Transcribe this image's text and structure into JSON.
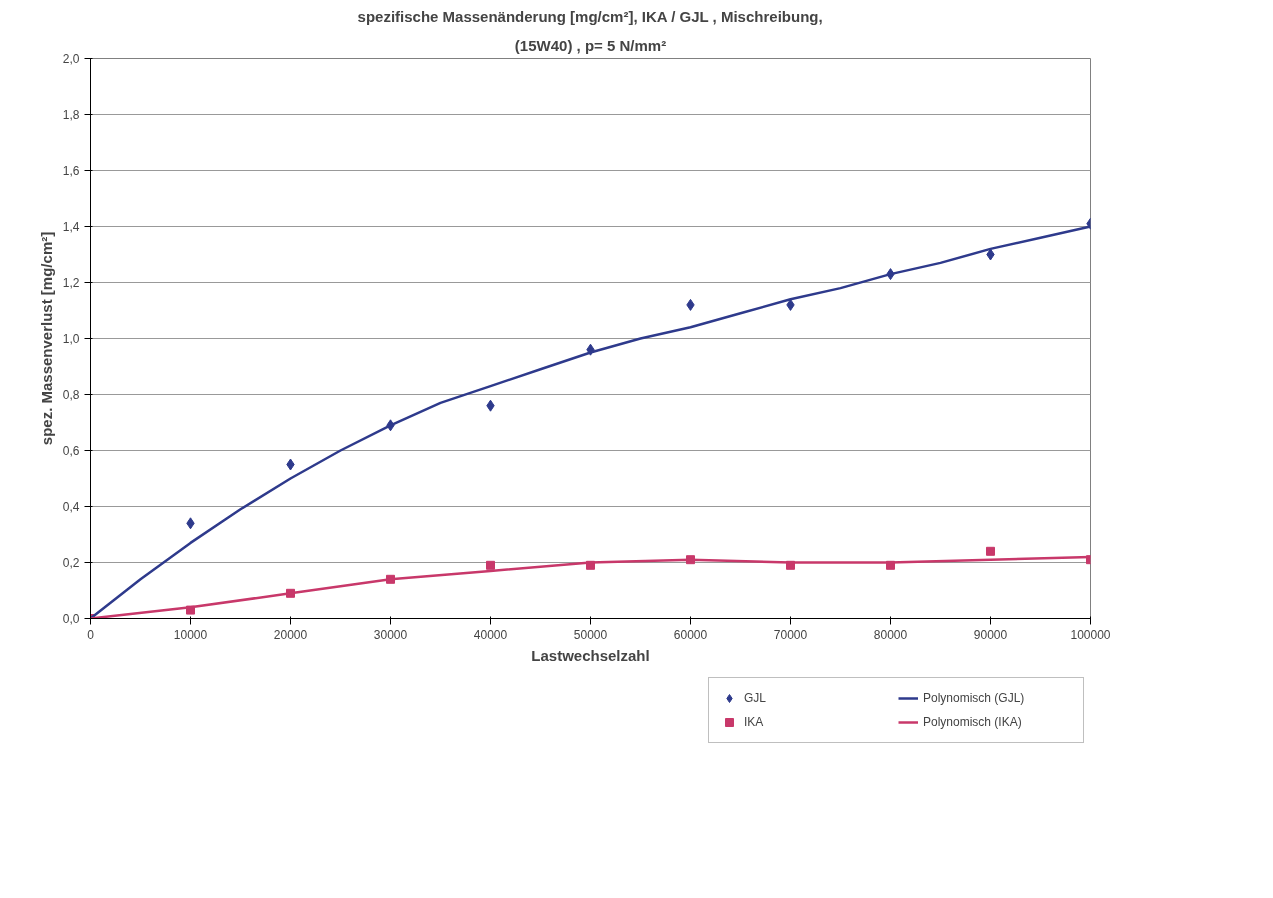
{
  "chart_data": {
    "type": "scatter",
    "title": "spezifische Massenänderung [mg/cm²], IKA / GJL , Mischreibung,",
    "subtitle": "(15W40) , p= 5 N/mm²",
    "xlabel": "Lastwechselzahl",
    "ylabel": "spez. Massenverlust [mg/cm²]",
    "x": [
      0,
      10000,
      20000,
      30000,
      40000,
      50000,
      60000,
      70000,
      80000,
      90000,
      100000
    ],
    "series": [
      {
        "name": "GJL",
        "marker": "diamond",
        "color": "#2e3a8c",
        "values": [
          null,
          0.34,
          0.55,
          0.69,
          0.76,
          0.96,
          1.12,
          1.12,
          1.23,
          1.3,
          1.41
        ]
      },
      {
        "name": "IKA",
        "marker": "square",
        "color": "#c8386a",
        "values": [
          0,
          0.03,
          0.09,
          0.14,
          0.19,
          0.19,
          0.21,
          0.19,
          0.19,
          0.24,
          0.21
        ]
      },
      {
        "name": "Polynomisch (GJL)",
        "type": "line",
        "color": "#2e3a8c",
        "x": [
          0,
          5000,
          10000,
          15000,
          20000,
          25000,
          30000,
          35000,
          40000,
          45000,
          50000,
          55000,
          60000,
          65000,
          70000,
          75000,
          80000,
          85000,
          90000,
          95000,
          100000
        ],
        "values": [
          0,
          0.14,
          0.27,
          0.39,
          0.5,
          0.6,
          0.69,
          0.77,
          0.83,
          0.89,
          0.95,
          1.0,
          1.04,
          1.09,
          1.14,
          1.18,
          1.23,
          1.27,
          1.32,
          1.36,
          1.4
        ]
      },
      {
        "name": "Polynomisch (IKA)",
        "type": "line",
        "color": "#c8386a",
        "x": [
          0,
          10000,
          20000,
          30000,
          40000,
          50000,
          60000,
          70000,
          80000,
          90000,
          100000
        ],
        "values": [
          0,
          0.04,
          0.09,
          0.14,
          0.17,
          0.2,
          0.21,
          0.2,
          0.2,
          0.21,
          0.22
        ]
      }
    ],
    "xlim": [
      0,
      100000
    ],
    "xticks": [
      0,
      10000,
      20000,
      30000,
      40000,
      50000,
      60000,
      70000,
      80000,
      90000,
      100000
    ],
    "ylim": [
      0,
      2
    ],
    "yticks": [
      {
        "value": 0,
        "label": "0,0"
      },
      {
        "value": 0.2,
        "label": "0,2"
      },
      {
        "value": 0.4,
        "label": "0,4"
      },
      {
        "value": 0.6,
        "label": "0,6"
      },
      {
        "value": 0.8,
        "label": "0,8"
      },
      {
        "value": 1.0,
        "label": "1,0"
      },
      {
        "value": 1.2,
        "label": "1,2"
      },
      {
        "value": 1.4,
        "label": "1,4"
      },
      {
        "value": 1.6,
        "label": "1,6"
      },
      {
        "value": 1.8,
        "label": "1,8"
      },
      {
        "value": 2.0,
        "label": "2,0"
      }
    ],
    "grid": "y",
    "legend": "bottom"
  }
}
